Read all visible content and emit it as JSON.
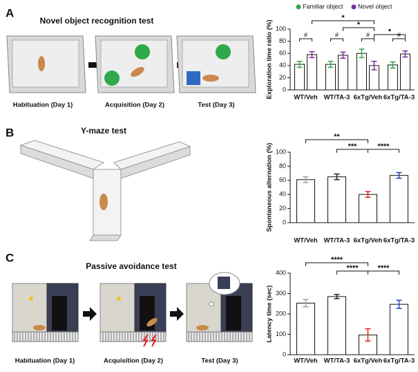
{
  "panels": [
    {
      "letter": "A",
      "title": "Novel object recognition test",
      "captions": [
        "Habituation (Day 1)",
        "Acquisition (Day 2)",
        "Test (Day 3)"
      ]
    },
    {
      "letter": "B",
      "title": "Y-maze test"
    },
    {
      "letter": "C",
      "title": "Passive avoidance test",
      "captions": [
        "Habituation (Day 1)",
        "Acquisition (Day 2)",
        "Test (Day 3)"
      ]
    }
  ],
  "chart_data": [
    {
      "type": "grouped_bar",
      "y_label": "Exploration time ratio (%)",
      "categories": [
        "WT/Veh",
        "WT/TA-3",
        "6xTg/Veh",
        "6xTg/TA-3"
      ],
      "series": [
        {
          "name": "Familiar object",
          "color": "#2eaa4a",
          "values": [
            42,
            42,
            60,
            41
          ],
          "errors": [
            5,
            5,
            7,
            5
          ]
        },
        {
          "name": "Novel object",
          "color": "#7b2fa0",
          "values": [
            58,
            57,
            40,
            59
          ],
          "errors": [
            5,
            5,
            7,
            5
          ]
        }
      ],
      "ylim": [
        0,
        100
      ],
      "yticks": [
        0,
        20,
        40,
        60,
        80,
        100
      ],
      "pair_marks": [
        "#",
        "#",
        "#",
        "#"
      ],
      "significance": [
        "*",
        "*",
        "*"
      ]
    },
    {
      "type": "bar",
      "y_label": "Spontaneous alternation (%)",
      "categories": [
        "WT/Veh",
        "WT/TA-3",
        "6xTg/Veh",
        "6xTg/TA-3"
      ],
      "values": [
        61,
        65,
        40,
        67
      ],
      "errors": [
        4,
        4,
        4,
        4
      ],
      "colors": [
        "#a0a0a0",
        "#222222",
        "#e02020",
        "#1c3fbf"
      ],
      "ylim": [
        0,
        100
      ],
      "yticks": [
        0,
        20,
        40,
        60,
        80,
        100
      ],
      "significance": [
        "**",
        "***",
        "****"
      ]
    },
    {
      "type": "bar",
      "y_label": "Latency time (sec)",
      "categories": [
        "WT/Veh",
        "WT/TA-3",
        "6xTg/Veh",
        "6xTg/TA-3"
      ],
      "values": [
        253,
        285,
        97,
        247
      ],
      "errors": [
        18,
        10,
        30,
        20
      ],
      "colors": [
        "#a0a0a0",
        "#222222",
        "#e02020",
        "#1c3fbf"
      ],
      "ylim": [
        0,
        400
      ],
      "yticks": [
        0,
        100,
        200,
        300,
        400
      ],
      "significance": [
        "****",
        "****",
        "****"
      ]
    }
  ]
}
